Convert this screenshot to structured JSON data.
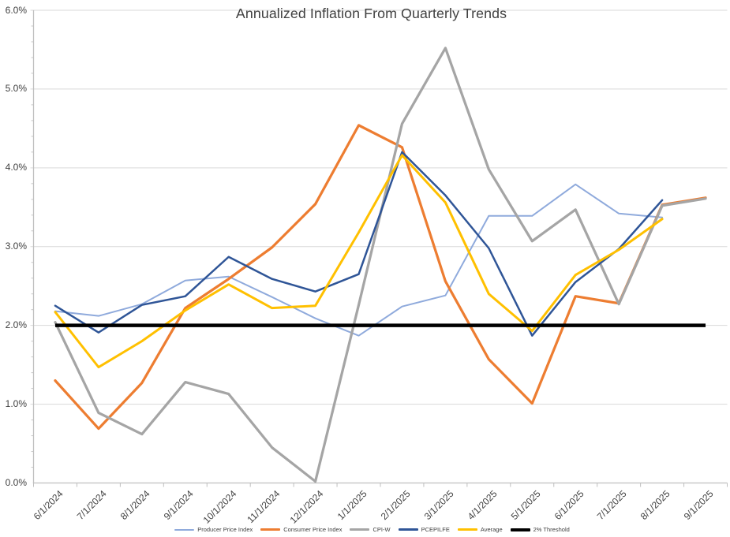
{
  "title": "Annualized Inflation From Quarterly Trends",
  "chart_data": {
    "type": "line",
    "title": "Annualized Inflation From Quarterly Trends",
    "xlabel": "",
    "ylabel": "",
    "categories": [
      "6/1/2024",
      "7/1/2024",
      "8/1/2024",
      "9/1/2024",
      "10/1/2024",
      "11/1/2024",
      "12/1/2024",
      "1/1/2025",
      "2/1/2025",
      "3/1/2025",
      "4/1/2025",
      "5/1/2025",
      "6/1/2025",
      "7/1/2025",
      "8/1/2025",
      "9/1/2025"
    ],
    "series": [
      {
        "name": "Producer Price Index",
        "color": "#8FAADC",
        "line_width": 2,
        "values": [
          2.18,
          2.12,
          2.27,
          2.57,
          2.62,
          2.36,
          2.09,
          1.87,
          2.24,
          2.38,
          3.39,
          3.39,
          3.79,
          3.42,
          3.37,
          null
        ]
      },
      {
        "name": "Consumer Price Index",
        "color": "#ED7D31",
        "line_width": 3.25,
        "values": [
          1.3,
          0.69,
          1.27,
          2.22,
          2.59,
          2.99,
          3.54,
          4.54,
          4.26,
          2.56,
          1.57,
          1.01,
          2.37,
          2.28,
          3.53,
          3.62
        ]
      },
      {
        "name": "CPI-W",
        "color": "#A5A5A5",
        "line_width": 3.25,
        "values": [
          2.04,
          0.89,
          0.62,
          1.28,
          1.13,
          0.45,
          0.02,
          2.26,
          4.56,
          5.52,
          3.98,
          3.07,
          3.47,
          2.27,
          3.52,
          3.61
        ]
      },
      {
        "name": "PCEPILFE",
        "color": "#2F5597",
        "line_width": 2.5,
        "values": [
          2.25,
          1.91,
          2.26,
          2.37,
          2.87,
          2.59,
          2.43,
          2.65,
          4.2,
          3.65,
          2.98,
          1.87,
          2.55,
          2.97,
          3.59,
          null
        ]
      },
      {
        "name": "Average",
        "color": "#FFC000",
        "line_width": 3,
        "values": [
          2.17,
          1.47,
          1.8,
          2.19,
          2.52,
          2.22,
          2.25,
          3.18,
          4.16,
          3.56,
          2.4,
          1.93,
          2.64,
          2.96,
          3.35,
          null
        ]
      },
      {
        "name": "2% Threshold",
        "color": "#000000",
        "line_width": 4.5,
        "values": [
          2.0,
          2.0,
          2.0,
          2.0,
          2.0,
          2.0,
          2.0,
          2.0,
          2.0,
          2.0,
          2.0,
          2.0,
          2.0,
          2.0,
          2.0,
          2.0
        ]
      }
    ],
    "y_axis": {
      "min": 0,
      "max": 6,
      "major_step": 1,
      "minor_step": 0.2,
      "tick_labels": [
        "0.0%",
        "1.0%",
        "2.0%",
        "3.0%",
        "4.0%",
        "5.0%",
        "6.0%"
      ]
    },
    "x_axis": {
      "label_rotation_deg": 45
    },
    "legend_position": "bottom-center",
    "grid": true,
    "colors": {
      "background": "#FFFFFF",
      "gridline": "#D9D9D9",
      "axis_line": "#BFBFBF",
      "minor_tick": "#C9C9C9",
      "label_text": "#404040"
    }
  }
}
